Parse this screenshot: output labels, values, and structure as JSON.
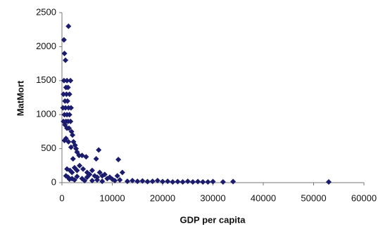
{
  "chart_data": {
    "type": "scatter",
    "x_label": "GDP per capita",
    "y_label": "MatMort",
    "color": "#1c1c6e",
    "marker": "diamond",
    "xlim": [
      0,
      60000
    ],
    "xticks": [
      0,
      10000,
      20000,
      30000,
      40000,
      50000,
      60000
    ],
    "ylim": [
      0,
      2500
    ],
    "yticks": [
      0,
      500,
      1000,
      1500,
      2000,
      2500
    ],
    "grid": false,
    "x": [
      1300,
      400,
      500,
      700,
      400,
      1000,
      1700,
      800,
      1200,
      300,
      900,
      1500,
      600,
      1100,
      200,
      700,
      1300,
      1800,
      500,
      1000,
      1500,
      300,
      800,
      1200,
      1700,
      600,
      1000,
      1400,
      1900,
      2100,
      800,
      1300,
      500,
      2300,
      2600,
      1800,
      2800,
      3000,
      3400,
      4000,
      4800,
      7300,
      6800,
      11200,
      2200,
      1000,
      1600,
      2000,
      2500,
      3000,
      3500,
      4200,
      5000,
      5500,
      6000,
      6500,
      7000,
      7500,
      8000,
      8500,
      9000,
      9500,
      10000,
      11000,
      12000,
      800,
      1200,
      1500,
      2000,
      2500,
      3000,
      4000,
      4500,
      5000,
      6000,
      7000,
      8000,
      10500,
      11500,
      13000,
      14000,
      15000,
      16000,
      17000,
      18000,
      19000,
      20000,
      21000,
      22000,
      23000,
      24000,
      25000,
      26000,
      27000,
      28000,
      29000,
      30000,
      32000,
      34000,
      53000
    ],
    "values": [
      2300,
      2100,
      1900,
      1800,
      1500,
      1500,
      1500,
      1400,
      1400,
      1300,
      1300,
      1300,
      1200,
      1200,
      1100,
      1100,
      1100,
      1100,
      1000,
      1000,
      1000,
      900,
      900,
      900,
      900,
      850,
      800,
      800,
      750,
      700,
      650,
      600,
      620,
      600,
      550,
      520,
      500,
      450,
      400,
      400,
      380,
      480,
      350,
      340,
      350,
      200,
      180,
      150,
      220,
      180,
      250,
      200,
      150,
      120,
      180,
      100,
      80,
      150,
      100,
      120,
      60,
      80,
      50,
      100,
      150,
      100,
      80,
      50,
      60,
      40,
      90,
      60,
      30,
      80,
      30,
      40,
      20,
      30,
      40,
      20,
      30,
      20,
      25,
      15,
      20,
      30,
      15,
      20,
      10,
      15,
      10,
      20,
      10,
      15,
      10,
      10,
      15,
      10,
      15,
      10
    ]
  }
}
